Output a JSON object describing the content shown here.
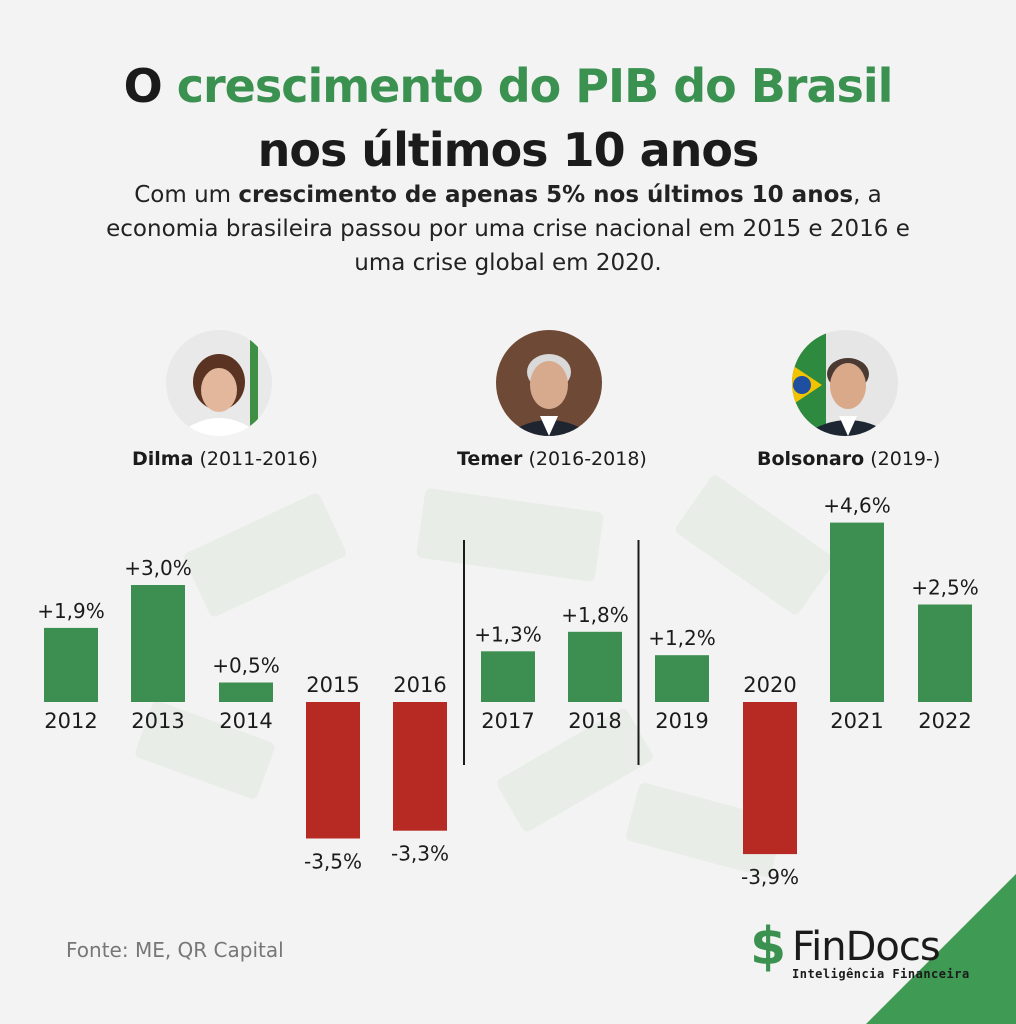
{
  "headline": {
    "line1_prefix": "O",
    "line1_highlight": "crescimento do PIB do Brasil",
    "line2": "nos últimos 10 anos"
  },
  "subtitle": {
    "part1": "Com um ",
    "bold": "crescimento de apenas 5% nos últimos 10 anos",
    "part2": ", a economia brasileira passou por uma crise nacional em 2015 e 2016 e uma crise global em 2020."
  },
  "presidents": [
    {
      "name": "Dilma",
      "term": "(2011-2016)"
    },
    {
      "name": "Temer",
      "term": "(2016-2018)"
    },
    {
      "name": "Bolsonaro",
      "term": "(2019-)"
    }
  ],
  "chart_data": {
    "type": "bar",
    "title": "O crescimento do PIB do Brasil nos últimos 10 anos",
    "categories": [
      "2012",
      "2013",
      "2014",
      "2015",
      "2016",
      "2017",
      "2018",
      "2019",
      "2020",
      "2021",
      "2022"
    ],
    "values": [
      1.9,
      3.0,
      0.5,
      -3.5,
      -3.3,
      1.3,
      1.8,
      1.2,
      -3.9,
      4.6,
      2.5
    ],
    "value_labels": [
      "+1,9%",
      "+3,0%",
      "+0,5%",
      "-3,5%",
      "-3,3%",
      "+1,3%",
      "+1,8%",
      "+1,2%",
      "-3,9%",
      "+4,6%",
      "+2,5%"
    ],
    "unit": "%",
    "colors": {
      "positive": "#3c8f50",
      "negative": "#b72a24"
    },
    "period_dividers_after": [
      "2016",
      "2018"
    ],
    "grid": false
  },
  "source": "Fonte: ME, QR Capital",
  "logo": {
    "symbol": "$",
    "name": "FinDocs",
    "tagline": "Inteligência Financeira"
  },
  "colors": {
    "accent": "#3a9150",
    "background": "#f3f3f3"
  }
}
